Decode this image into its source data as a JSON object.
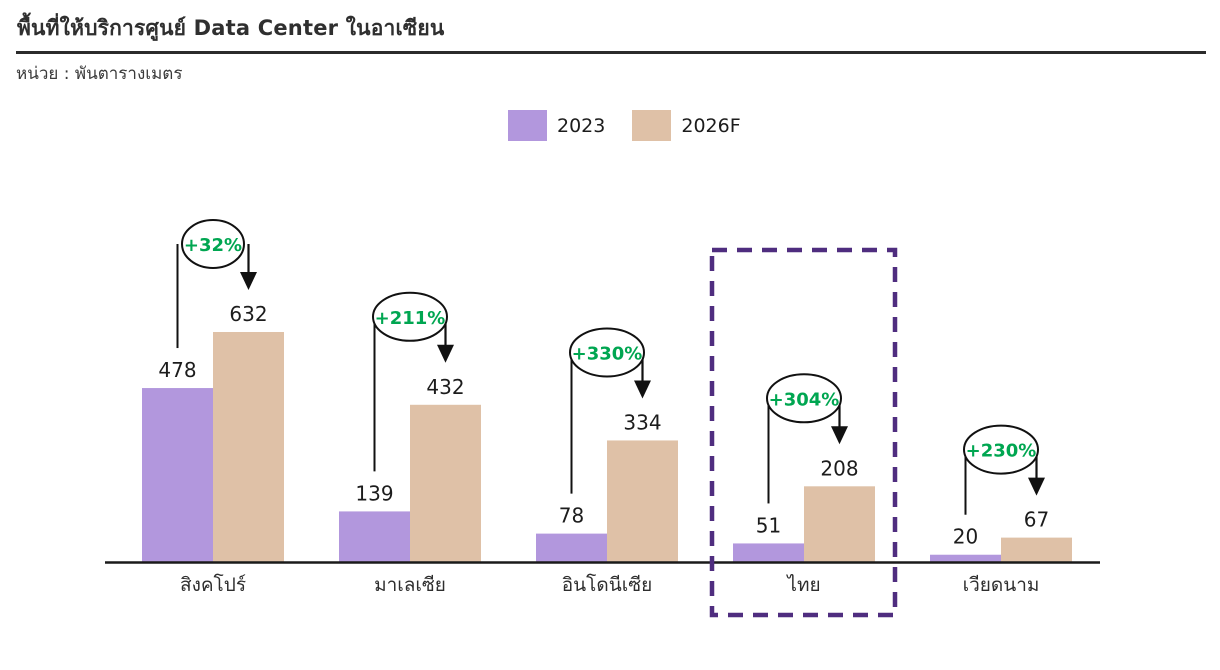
{
  "header": {
    "title": "พื้นที่ให้บริการศูนย์ Data Center ในอาเซียน",
    "unit": "หน่วย : พันตารางเมตร"
  },
  "legend": {
    "items": [
      {
        "label": "2023",
        "color": "#b297dd"
      },
      {
        "label": "2026F",
        "color": "#dfc1a7"
      }
    ]
  },
  "chart_data": {
    "type": "bar",
    "title": "พื้นที่ให้บริการศูนย์ Data Center ในอาเซียน",
    "unit": "พันตารางเมตร",
    "categories": [
      "สิงคโปร์",
      "มาเลเซีย",
      "อินโดนีเซีย",
      "ไทย",
      "เวียดนาม"
    ],
    "series": [
      {
        "name": "2023",
        "color": "#b297dd",
        "values": [
          478,
          139,
          78,
          51,
          20
        ]
      },
      {
        "name": "2026F",
        "color": "#dfc1a7",
        "values": [
          632,
          432,
          334,
          208,
          67
        ]
      }
    ],
    "growth_labels": [
      "+32%",
      "+211%",
      "+330%",
      "+304%",
      "+230%"
    ],
    "highlighted_category": "ไทย",
    "ylim": [
      0,
      650
    ],
    "grid": false,
    "y_axis_visible": false,
    "legend_position": "top-center"
  },
  "colors": {
    "growth_green": "#00a651",
    "highlight_purple": "#4f2d7f",
    "axis": "#1a1a1a",
    "value_text": "#1c1c1c",
    "category_text": "#2e2e2e"
  }
}
